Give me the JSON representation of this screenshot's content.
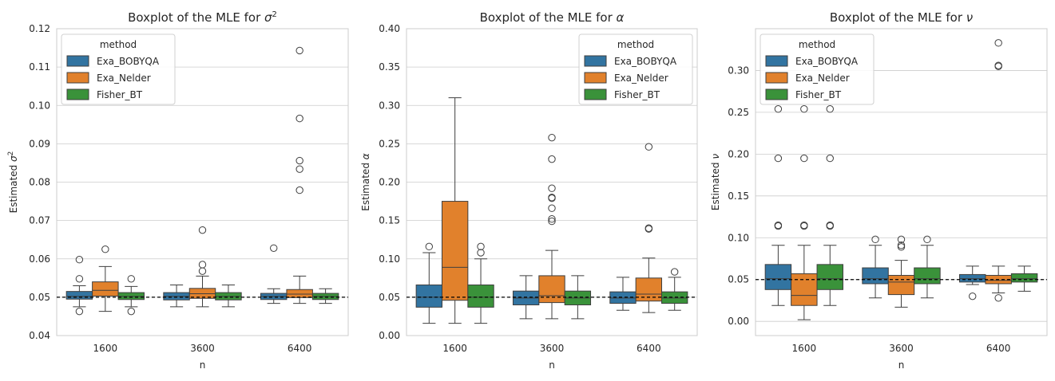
{
  "colors": {
    "Exa_BOBYQA": "#3274a1",
    "Exa_Nelder": "#e1812c",
    "Fisher_BT": "#3a923a",
    "grid": "#cccccc",
    "frame": "#cccccc",
    "ref_line": "#000000"
  },
  "chart_data": [
    {
      "type": "boxplot",
      "title": "Boxplot of the MLE for σ²",
      "title_main": "Boxplot of the MLE for ",
      "title_sym": "σ",
      "title_sup": "2",
      "xlabel": "n",
      "ylabel": "Estimated σ²",
      "ylabel_main": "Estimated ",
      "ylabel_sym": "σ",
      "ylabel_sup": "2",
      "ylim": [
        0.04,
        0.12
      ],
      "yticks": [
        0.04,
        0.05,
        0.06,
        0.07,
        0.08,
        0.09,
        0.1,
        0.11,
        0.12
      ],
      "ytick_labels": [
        "0.04",
        "0.05",
        "0.06",
        "0.07",
        "0.08",
        "0.09",
        "0.10",
        "0.11",
        "0.12"
      ],
      "ref_value": 0.05,
      "categories": [
        "1600",
        "3600",
        "6400"
      ],
      "legend": {
        "title": "method",
        "position": "upper-left"
      },
      "series": [
        {
          "name": "Exa_BOBYQA",
          "boxes": [
            {
              "min": 0.0475,
              "q1": 0.0495,
              "median": 0.0502,
              "q3": 0.0515,
              "max": 0.053,
              "outliers": [
                0.0598,
                0.0548,
                0.0463
              ]
            },
            {
              "min": 0.0475,
              "q1": 0.0493,
              "median": 0.0502,
              "q3": 0.0512,
              "max": 0.0532,
              "outliers": []
            },
            {
              "min": 0.0484,
              "q1": 0.0494,
              "median": 0.0502,
              "q3": 0.051,
              "max": 0.0522,
              "outliers": [
                0.0628
              ]
            }
          ]
        },
        {
          "name": "Exa_Nelder",
          "boxes": [
            {
              "min": 0.0463,
              "q1": 0.0503,
              "median": 0.0518,
              "q3": 0.054,
              "max": 0.058,
              "outliers": [
                0.0625
              ]
            },
            {
              "min": 0.0475,
              "q1": 0.0497,
              "median": 0.0509,
              "q3": 0.0523,
              "max": 0.0555,
              "outliers": [
                0.0675,
                0.0585,
                0.0568
              ]
            },
            {
              "min": 0.0484,
              "q1": 0.0499,
              "median": 0.0508,
              "q3": 0.052,
              "max": 0.0555,
              "outliers": [
                0.1143,
                0.0966,
                0.0856,
                0.0834,
                0.0779
              ]
            }
          ]
        },
        {
          "name": "Fisher_BT",
          "boxes": [
            {
              "min": 0.0475,
              "q1": 0.0494,
              "median": 0.0502,
              "q3": 0.0512,
              "max": 0.0528,
              "outliers": [
                0.0548,
                0.0463
              ]
            },
            {
              "min": 0.0475,
              "q1": 0.0493,
              "median": 0.0502,
              "q3": 0.0512,
              "max": 0.0532,
              "outliers": []
            },
            {
              "min": 0.0484,
              "q1": 0.0494,
              "median": 0.0502,
              "q3": 0.051,
              "max": 0.0522,
              "outliers": []
            }
          ]
        }
      ]
    },
    {
      "type": "boxplot",
      "title": "Boxplot of the MLE for α",
      "title_main": "Boxplot of the MLE for ",
      "title_sym": "α",
      "title_sup": "",
      "xlabel": "n",
      "ylabel": "Estimated α",
      "ylabel_main": "Estimated ",
      "ylabel_sym": "α",
      "ylabel_sup": "",
      "ylim": [
        0.0,
        0.4
      ],
      "yticks": [
        0.0,
        0.05,
        0.1,
        0.15,
        0.2,
        0.25,
        0.3,
        0.35,
        0.4
      ],
      "ytick_labels": [
        "0.00",
        "0.05",
        "0.10",
        "0.15",
        "0.20",
        "0.25",
        "0.30",
        "0.35",
        "0.40"
      ],
      "ref_value": 0.05,
      "categories": [
        "1600",
        "3600",
        "6400"
      ],
      "legend": {
        "title": "method",
        "position": "upper-right"
      },
      "series": [
        {
          "name": "Exa_BOBYQA",
          "boxes": [
            {
              "min": 0.016,
              "q1": 0.037,
              "median": 0.05,
              "q3": 0.066,
              "max": 0.108,
              "outliers": [
                0.116
              ]
            },
            {
              "min": 0.022,
              "q1": 0.04,
              "median": 0.049,
              "q3": 0.058,
              "max": 0.078,
              "outliers": []
            },
            {
              "min": 0.033,
              "q1": 0.042,
              "median": 0.049,
              "q3": 0.057,
              "max": 0.076,
              "outliers": []
            }
          ]
        },
        {
          "name": "Exa_Nelder",
          "boxes": [
            {
              "min": 0.016,
              "q1": 0.046,
              "median": 0.089,
              "q3": 0.175,
              "max": 0.31,
              "outliers": []
            },
            {
              "min": 0.022,
              "q1": 0.043,
              "median": 0.052,
              "q3": 0.078,
              "max": 0.111,
              "outliers": [
                0.258,
                0.23,
                0.192,
                0.18,
                0.179,
                0.166,
                0.152,
                0.149
              ]
            },
            {
              "min": 0.03,
              "q1": 0.045,
              "median": 0.054,
              "q3": 0.075,
              "max": 0.101,
              "outliers": [
                0.246,
                0.14,
                0.139
              ]
            }
          ]
        },
        {
          "name": "Fisher_BT",
          "boxes": [
            {
              "min": 0.016,
              "q1": 0.037,
              "median": 0.05,
              "q3": 0.066,
              "max": 0.1,
              "outliers": [
                0.116,
                0.108
              ]
            },
            {
              "min": 0.022,
              "q1": 0.04,
              "median": 0.049,
              "q3": 0.058,
              "max": 0.078,
              "outliers": []
            },
            {
              "min": 0.033,
              "q1": 0.042,
              "median": 0.049,
              "q3": 0.057,
              "max": 0.076,
              "outliers": [
                0.083
              ]
            }
          ]
        }
      ]
    },
    {
      "type": "boxplot",
      "title": "Boxplot of the MLE for ν",
      "title_main": "Boxplot of the MLE for ",
      "title_sym": "ν",
      "title_sup": "",
      "xlabel": "n",
      "ylabel": "Estimated ν",
      "ylabel_main": "Estimated ",
      "ylabel_sym": "ν",
      "ylabel_sup": "",
      "ylim": [
        -0.017,
        0.35
      ],
      "yticks": [
        0.0,
        0.05,
        0.1,
        0.15,
        0.2,
        0.25,
        0.3
      ],
      "ytick_labels": [
        "0.00",
        "0.05",
        "0.10",
        "0.15",
        "0.20",
        "0.25",
        "0.30"
      ],
      "ref_value": 0.05,
      "categories": [
        "1600",
        "3600",
        "6400"
      ],
      "legend": {
        "title": "method",
        "position": "upper-left"
      },
      "series": [
        {
          "name": "Exa_BOBYQA",
          "boxes": [
            {
              "min": 0.019,
              "q1": 0.038,
              "median": 0.051,
              "q3": 0.068,
              "max": 0.091,
              "outliers": [
                0.254,
                0.195,
                0.115,
                0.114
              ]
            },
            {
              "min": 0.028,
              "q1": 0.045,
              "median": 0.051,
              "q3": 0.064,
              "max": 0.091,
              "outliers": [
                0.098
              ]
            },
            {
              "min": 0.044,
              "q1": 0.047,
              "median": 0.051,
              "q3": 0.056,
              "max": 0.066,
              "outliers": [
                0.03
              ]
            }
          ]
        },
        {
          "name": "Exa_Nelder",
          "boxes": [
            {
              "min": 0.002,
              "q1": 0.019,
              "median": 0.031,
              "q3": 0.057,
              "max": 0.091,
              "outliers": [
                0.254,
                0.195,
                0.115,
                0.114
              ]
            },
            {
              "min": 0.017,
              "q1": 0.032,
              "median": 0.047,
              "q3": 0.055,
              "max": 0.073,
              "outliers": [
                0.098,
                0.091,
                0.089
              ]
            },
            {
              "min": 0.034,
              "q1": 0.045,
              "median": 0.049,
              "q3": 0.055,
              "max": 0.066,
              "outliers": [
                0.333,
                0.306,
                0.305,
                0.028
              ]
            }
          ]
        },
        {
          "name": "Fisher_BT",
          "boxes": [
            {
              "min": 0.019,
              "q1": 0.038,
              "median": 0.051,
              "q3": 0.068,
              "max": 0.091,
              "outliers": [
                0.254,
                0.195,
                0.115,
                0.114
              ]
            },
            {
              "min": 0.028,
              "q1": 0.045,
              "median": 0.051,
              "q3": 0.064,
              "max": 0.091,
              "outliers": [
                0.098
              ]
            },
            {
              "min": 0.036,
              "q1": 0.047,
              "median": 0.051,
              "q3": 0.057,
              "max": 0.066,
              "outliers": []
            }
          ]
        }
      ]
    }
  ]
}
